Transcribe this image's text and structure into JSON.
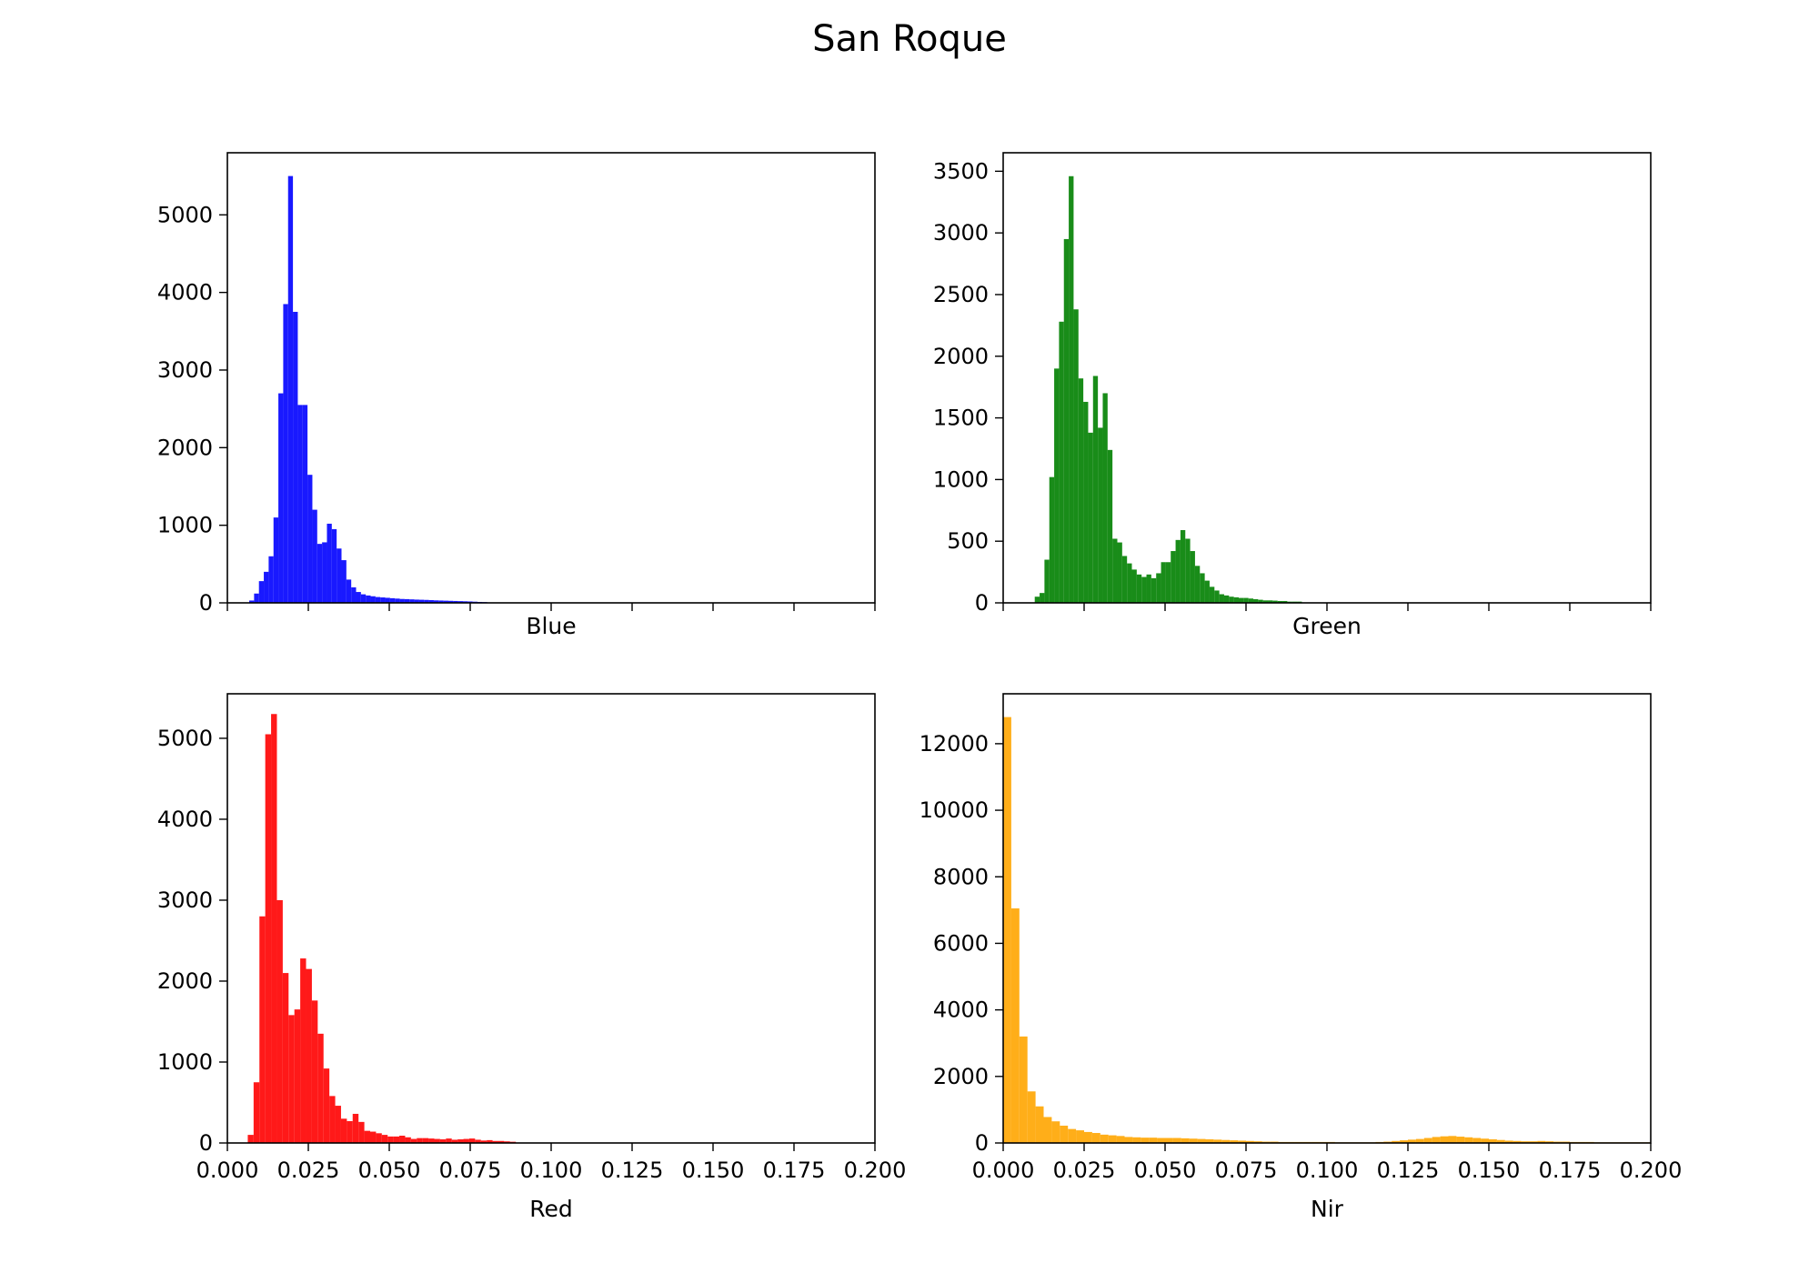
{
  "figure": {
    "title": "San Roque"
  },
  "chart_data": [
    {
      "type": "bar",
      "panel": "top-left",
      "xlabel": "Blue",
      "color": "#0000ff",
      "alpha": 0.9,
      "xlim": [
        0,
        0.2
      ],
      "ylim": [
        0,
        5800
      ],
      "x_ticks": [
        0,
        0.025,
        0.05,
        0.075,
        0.1,
        0.125,
        0.15,
        0.175,
        0.2
      ],
      "show_x_tick_labels": false,
      "y_ticks": [
        0,
        1000,
        2000,
        3000,
        4000,
        5000
      ],
      "y_tick_labels": [
        "0",
        "1000",
        "2000",
        "3000",
        "4000",
        "5000"
      ],
      "bin_width": 0.0015,
      "x": [
        0.0075,
        0.009,
        0.0105,
        0.012,
        0.0135,
        0.015,
        0.0165,
        0.018,
        0.0195,
        0.021,
        0.0225,
        0.024,
        0.0255,
        0.027,
        0.0285,
        0.03,
        0.0315,
        0.033,
        0.0345,
        0.036,
        0.0375,
        0.039,
        0.0405,
        0.042,
        0.0435,
        0.045,
        0.0465,
        0.048,
        0.0495,
        0.051,
        0.0525,
        0.054,
        0.0555,
        0.057,
        0.0585,
        0.06,
        0.0615,
        0.063,
        0.0645,
        0.066,
        0.0675,
        0.069,
        0.0705,
        0.072,
        0.0735,
        0.075,
        0.0765,
        0.078,
        0.0795
      ],
      "values": [
        30,
        120,
        280,
        400,
        600,
        1100,
        2700,
        3850,
        5500,
        3750,
        2550,
        2550,
        1650,
        1200,
        760,
        780,
        1020,
        950,
        700,
        550,
        300,
        200,
        140,
        110,
        95,
        85,
        75,
        70,
        65,
        60,
        55,
        50,
        48,
        45,
        42,
        40,
        38,
        35,
        32,
        30,
        28,
        26,
        24,
        22,
        20,
        18,
        15,
        12,
        10
      ]
    },
    {
      "type": "bar",
      "panel": "top-right",
      "xlabel": "Green",
      "color": "#008000",
      "alpha": 0.9,
      "xlim": [
        0,
        0.2
      ],
      "ylim": [
        0,
        3650
      ],
      "x_ticks": [
        0,
        0.025,
        0.05,
        0.075,
        0.1,
        0.125,
        0.15,
        0.175,
        0.2
      ],
      "show_x_tick_labels": false,
      "y_ticks": [
        0,
        500,
        1000,
        1500,
        2000,
        2500,
        3000,
        3500
      ],
      "y_tick_labels": [
        "0",
        "500",
        "1000",
        "1500",
        "2000",
        "2500",
        "3000",
        "3500"
      ],
      "bin_width": 0.0015,
      "x": [
        0.0105,
        0.012,
        0.0135,
        0.015,
        0.0165,
        0.018,
        0.0195,
        0.021,
        0.0225,
        0.024,
        0.0255,
        0.027,
        0.0285,
        0.03,
        0.0315,
        0.033,
        0.0345,
        0.036,
        0.0375,
        0.039,
        0.0405,
        0.042,
        0.0435,
        0.045,
        0.0465,
        0.048,
        0.0495,
        0.051,
        0.0525,
        0.054,
        0.0555,
        0.057,
        0.0585,
        0.06,
        0.0615,
        0.063,
        0.0645,
        0.066,
        0.0675,
        0.069,
        0.0705,
        0.072,
        0.0735,
        0.075,
        0.0765,
        0.078,
        0.0795,
        0.081,
        0.0825,
        0.084,
        0.0855,
        0.087,
        0.0885,
        0.09,
        0.0915
      ],
      "values": [
        50,
        80,
        350,
        1020,
        1900,
        2280,
        2950,
        3460,
        2380,
        1820,
        1630,
        1380,
        1840,
        1420,
        1700,
        1240,
        520,
        490,
        380,
        320,
        270,
        230,
        210,
        230,
        200,
        240,
        330,
        330,
        420,
        510,
        590,
        520,
        420,
        300,
        240,
        180,
        130,
        100,
        70,
        60,
        50,
        45,
        40,
        40,
        35,
        30,
        25,
        20,
        20,
        18,
        15,
        15,
        10,
        10,
        10
      ]
    },
    {
      "type": "bar",
      "panel": "bottom-left",
      "xlabel": "Red",
      "color": "#ff0000",
      "alpha": 0.9,
      "xlim": [
        0,
        0.2
      ],
      "ylim": [
        0,
        5550
      ],
      "x_ticks": [
        0,
        0.025,
        0.05,
        0.075,
        0.1,
        0.125,
        0.15,
        0.175,
        0.2
      ],
      "x_tick_labels": [
        "0.000",
        "0.025",
        "0.050",
        "0.075",
        "0.100",
        "0.125",
        "0.150",
        "0.175",
        "0.200"
      ],
      "show_x_tick_labels": true,
      "y_ticks": [
        0,
        1000,
        2000,
        3000,
        4000,
        5000
      ],
      "y_tick_labels": [
        "0",
        "1000",
        "2000",
        "3000",
        "4000",
        "5000"
      ],
      "bin_width": 0.0018,
      "x": [
        0.0072,
        0.009,
        0.0108,
        0.0126,
        0.0144,
        0.0162,
        0.018,
        0.0198,
        0.0216,
        0.0234,
        0.0252,
        0.027,
        0.0288,
        0.0306,
        0.0324,
        0.0342,
        0.036,
        0.0378,
        0.0396,
        0.0414,
        0.0432,
        0.045,
        0.0468,
        0.0486,
        0.0504,
        0.0522,
        0.054,
        0.0558,
        0.0576,
        0.0594,
        0.0612,
        0.063,
        0.0648,
        0.0666,
        0.0684,
        0.0702,
        0.072,
        0.0738,
        0.0756,
        0.0774,
        0.0792,
        0.081,
        0.0828,
        0.0846,
        0.0864,
        0.0882
      ],
      "values": [
        100,
        750,
        2800,
        5050,
        5300,
        3000,
        2100,
        1580,
        1650,
        2280,
        2150,
        1760,
        1350,
        920,
        580,
        460,
        300,
        270,
        360,
        260,
        150,
        140,
        120,
        100,
        80,
        80,
        90,
        70,
        50,
        60,
        60,
        55,
        50,
        45,
        55,
        40,
        45,
        50,
        55,
        40,
        30,
        35,
        25,
        25,
        20,
        15
      ]
    },
    {
      "type": "bar",
      "panel": "bottom-right",
      "xlabel": "Nir",
      "color": "#ffa500",
      "alpha": 0.9,
      "xlim": [
        0,
        0.2
      ],
      "ylim": [
        0,
        13500
      ],
      "x_ticks": [
        0,
        0.025,
        0.05,
        0.075,
        0.1,
        0.125,
        0.15,
        0.175,
        0.2
      ],
      "x_tick_labels": [
        "0.000",
        "0.025",
        "0.050",
        "0.075",
        "0.100",
        "0.125",
        "0.150",
        "0.175",
        "0.200"
      ],
      "show_x_tick_labels": true,
      "y_ticks": [
        0,
        2000,
        4000,
        6000,
        8000,
        10000,
        12000
      ],
      "y_tick_labels": [
        "0",
        "2000",
        "4000",
        "6000",
        "8000",
        "10000",
        "12000"
      ],
      "bin_width": 0.0025,
      "x": [
        0.00125,
        0.00375,
        0.00625,
        0.00875,
        0.01125,
        0.01375,
        0.01625,
        0.01875,
        0.02125,
        0.02375,
        0.02625,
        0.02875,
        0.03125,
        0.03375,
        0.03625,
        0.03875,
        0.04125,
        0.04375,
        0.04625,
        0.04875,
        0.05125,
        0.05375,
        0.05625,
        0.05875,
        0.06125,
        0.06375,
        0.06625,
        0.06875,
        0.07125,
        0.07375,
        0.07625,
        0.07875,
        0.08125,
        0.08375,
        0.08625,
        0.08875,
        0.09125,
        0.09375,
        0.09625,
        0.09875,
        0.10125,
        0.10375,
        0.10625,
        0.10875,
        0.11125,
        0.11375,
        0.11625,
        0.11875,
        0.12125,
        0.12375,
        0.12625,
        0.12875,
        0.13125,
        0.13375,
        0.13625,
        0.13875,
        0.14125,
        0.14375,
        0.14625,
        0.14875,
        0.15125,
        0.15375,
        0.15625,
        0.15875,
        0.16125,
        0.16375,
        0.16625,
        0.16875,
        0.17125,
        0.17375,
        0.17625,
        0.17875,
        0.18125,
        0.18375,
        0.18625,
        0.18875,
        0.19125,
        0.19375,
        0.19625,
        0.19875
      ],
      "values": [
        12800,
        7050,
        3200,
        1550,
        1100,
        780,
        650,
        520,
        420,
        380,
        330,
        300,
        250,
        230,
        210,
        180,
        170,
        160,
        160,
        150,
        150,
        150,
        140,
        130,
        120,
        110,
        100,
        90,
        80,
        70,
        60,
        50,
        40,
        40,
        30,
        30,
        30,
        30,
        30,
        30,
        30,
        20,
        20,
        20,
        20,
        20,
        30,
        40,
        60,
        80,
        100,
        120,
        150,
        180,
        200,
        210,
        190,
        170,
        150,
        130,
        110,
        90,
        70,
        60,
        50,
        50,
        60,
        50,
        40,
        40,
        30,
        30,
        30,
        20,
        20,
        20,
        20,
        20,
        20,
        20
      ]
    }
  ]
}
